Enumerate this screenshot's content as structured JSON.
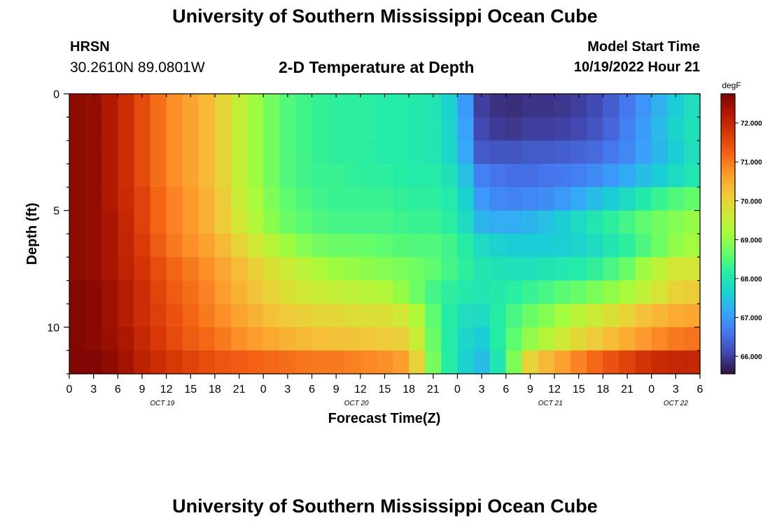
{
  "header": {
    "title": "University of Southern Mississippi Ocean Cube",
    "station": "HRSN",
    "coords": "30.2610N  89.0801W",
    "subtitle": "2-D Temperature at Depth",
    "model_start_label": "Model Start Time",
    "model_start_value": "10/19/2022 Hour 21"
  },
  "footer": {
    "title": "University of Southern Mississippi Ocean Cube"
  },
  "chart_data": {
    "type": "heatmap",
    "title": "2-D Temperature at Depth",
    "xlabel": "Forecast Time(Z)",
    "ylabel": "Depth (ft)",
    "xlim_hours": [
      0,
      78
    ],
    "ylim": [
      0,
      12
    ],
    "y_inverted": true,
    "x_ticks": [
      {
        "hour": 0,
        "label": "0"
      },
      {
        "hour": 3,
        "label": "3"
      },
      {
        "hour": 6,
        "label": "6"
      },
      {
        "hour": 9,
        "label": "9"
      },
      {
        "hour": 12,
        "label": "12"
      },
      {
        "hour": 15,
        "label": "15"
      },
      {
        "hour": 18,
        "label": "18"
      },
      {
        "hour": 21,
        "label": "21"
      },
      {
        "hour": 24,
        "label": "0"
      },
      {
        "hour": 27,
        "label": "3"
      },
      {
        "hour": 30,
        "label": "6"
      },
      {
        "hour": 33,
        "label": "9"
      },
      {
        "hour": 36,
        "label": "12"
      },
      {
        "hour": 39,
        "label": "15"
      },
      {
        "hour": 42,
        "label": "18"
      },
      {
        "hour": 45,
        "label": "21"
      },
      {
        "hour": 48,
        "label": "0"
      },
      {
        "hour": 51,
        "label": "3"
      },
      {
        "hour": 54,
        "label": "6"
      },
      {
        "hour": 57,
        "label": "9"
      },
      {
        "hour": 60,
        "label": "12"
      },
      {
        "hour": 63,
        "label": "15"
      },
      {
        "hour": 66,
        "label": "18"
      },
      {
        "hour": 69,
        "label": "21"
      },
      {
        "hour": 72,
        "label": "0"
      },
      {
        "hour": 75,
        "label": "3"
      },
      {
        "hour": 78,
        "label": "6"
      }
    ],
    "day_labels": [
      {
        "hour": 11.5,
        "label": "OCT 19"
      },
      {
        "hour": 35.5,
        "label": "OCT 20"
      },
      {
        "hour": 59.5,
        "label": "OCT 21"
      },
      {
        "hour": 75,
        "label": "OCT 22"
      }
    ],
    "y_ticks": [
      0,
      5,
      10
    ],
    "colorbar": {
      "unit": "degF",
      "min": 65.55,
      "max": 72.75,
      "ticks": [
        "66.000",
        "67.000",
        "68.000",
        "69.000",
        "70.000",
        "71.000",
        "72.000"
      ],
      "colormap": [
        "#30123b",
        "#4145ab",
        "#4675ed",
        "#39a2fc",
        "#1bcfd4",
        "#24eca6",
        "#61fc6c",
        "#a4fc3b",
        "#d1e834",
        "#f3c63a",
        "#fe9b2d",
        "#f36315",
        "#d93806",
        "#b11901",
        "#7a0403"
      ]
    },
    "depth_levels_ft": [
      0.5,
      1.5,
      2.5,
      3.5,
      4.5,
      5.5,
      6.5,
      7.5,
      8.5,
      9.5,
      10.5,
      11.5
    ],
    "time_hours": [
      0,
      3,
      6,
      9,
      12,
      15,
      18,
      21,
      24,
      27,
      30,
      33,
      36,
      39,
      42,
      45,
      48,
      51,
      54,
      57,
      60,
      63,
      66,
      69,
      72,
      75,
      78
    ],
    "values_degF": [
      [
        72.6,
        72.5,
        72.1,
        71.5,
        70.9,
        70.6,
        70.2,
        69.5,
        68.9,
        68.5,
        68.3,
        68.2,
        68.2,
        68.1,
        68.1,
        68.0,
        67.5,
        66.0,
        65.8,
        65.9,
        65.9,
        66.0,
        66.2,
        66.6,
        67.1,
        67.6,
        68.0
      ],
      [
        72.6,
        72.5,
        72.1,
        71.5,
        70.9,
        70.6,
        70.2,
        69.5,
        68.9,
        68.5,
        68.3,
        68.2,
        68.2,
        68.1,
        68.1,
        68.0,
        67.6,
        66.1,
        65.9,
        66.0,
        66.0,
        66.1,
        66.3,
        66.7,
        67.2,
        67.7,
        68.0
      ],
      [
        72.6,
        72.5,
        72.1,
        71.5,
        70.9,
        70.6,
        70.2,
        69.5,
        68.9,
        68.5,
        68.3,
        68.2,
        68.2,
        68.1,
        68.1,
        68.0,
        67.6,
        66.3,
        66.2,
        66.3,
        66.3,
        66.4,
        66.5,
        66.8,
        67.2,
        67.6,
        68.0
      ],
      [
        72.6,
        72.5,
        72.1,
        71.5,
        70.9,
        70.6,
        70.2,
        69.5,
        68.9,
        68.5,
        68.3,
        68.3,
        68.2,
        68.2,
        68.1,
        68.1,
        67.8,
        66.7,
        66.5,
        66.5,
        66.6,
        66.7,
        66.9,
        67.2,
        67.5,
        67.8,
        68.1
      ],
      [
        72.6,
        72.5,
        72.1,
        71.6,
        71.0,
        70.7,
        70.3,
        69.6,
        69.0,
        68.6,
        68.4,
        68.3,
        68.3,
        68.3,
        68.2,
        68.2,
        68.0,
        67.0,
        66.7,
        66.8,
        66.9,
        67.2,
        67.5,
        67.8,
        68.2,
        68.5,
        68.7
      ],
      [
        72.6,
        72.5,
        72.2,
        71.6,
        71.0,
        70.7,
        70.3,
        69.7,
        69.1,
        68.7,
        68.5,
        68.4,
        68.4,
        68.4,
        68.3,
        68.3,
        68.1,
        67.3,
        67.2,
        67.3,
        67.5,
        67.8,
        68.1,
        68.4,
        68.7,
        68.9,
        69.1
      ],
      [
        72.6,
        72.5,
        72.2,
        71.7,
        71.1,
        70.8,
        70.5,
        70.0,
        69.5,
        69.1,
        68.8,
        68.7,
        68.7,
        68.6,
        68.5,
        68.5,
        68.3,
        67.8,
        67.6,
        67.6,
        67.6,
        67.7,
        67.9,
        68.2,
        68.6,
        69.0,
        69.2
      ],
      [
        72.6,
        72.5,
        72.2,
        71.8,
        71.3,
        71.0,
        70.7,
        70.3,
        69.9,
        69.6,
        69.3,
        69.1,
        69.0,
        68.9,
        68.8,
        68.6,
        68.3,
        68.0,
        67.9,
        67.9,
        68.0,
        68.1,
        68.3,
        68.7,
        69.3,
        69.7,
        69.7
      ],
      [
        72.7,
        72.6,
        72.3,
        71.9,
        71.4,
        71.1,
        70.8,
        70.4,
        70.1,
        69.8,
        69.6,
        69.5,
        69.4,
        69.3,
        68.9,
        68.4,
        68.1,
        68.0,
        68.1,
        68.3,
        68.5,
        68.7,
        68.9,
        69.2,
        69.6,
        70.0,
        70.1
      ],
      [
        72.7,
        72.6,
        72.3,
        71.9,
        71.5,
        71.2,
        70.9,
        70.6,
        70.3,
        70.1,
        70.0,
        69.9,
        69.8,
        69.8,
        69.6,
        68.6,
        67.9,
        67.8,
        68.3,
        68.7,
        69.0,
        69.4,
        69.7,
        70.0,
        70.3,
        70.5,
        70.6
      ],
      [
        72.7,
        72.6,
        72.4,
        72.0,
        71.6,
        71.3,
        71.1,
        70.8,
        70.6,
        70.4,
        70.3,
        70.2,
        70.2,
        70.1,
        70.0,
        68.7,
        67.8,
        67.6,
        68.4,
        69.0,
        69.5,
        69.9,
        70.2,
        70.5,
        70.8,
        71.0,
        71.1
      ],
      [
        72.7,
        72.7,
        72.5,
        72.1,
        71.8,
        71.6,
        71.4,
        71.3,
        71.2,
        71.1,
        71.0,
        71.0,
        70.9,
        70.8,
        70.6,
        68.8,
        67.8,
        67.4,
        68.3,
        70.0,
        70.5,
        70.9,
        71.3,
        71.6,
        71.9,
        72.0,
        72.0
      ]
    ]
  }
}
